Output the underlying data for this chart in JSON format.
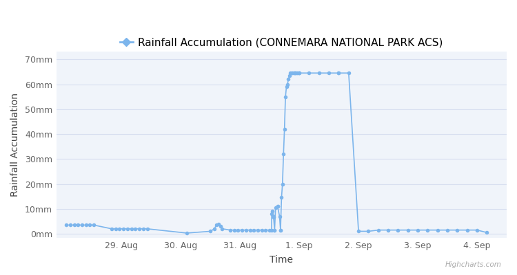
{
  "title": "Rainfall Accumulation (CONNEMARA NATIONAL PARK ACS)",
  "xlabel": "Time",
  "ylabel": "Rainfall Accumulation",
  "line_color": "#7cb5ec",
  "marker_color": "#7cb5ec",
  "background_color": "#ffffff",
  "plot_bg_color": "#f0f4fa",
  "grid_color": "#d8dff0",
  "watermark": "Highcharts.com",
  "yticks": [
    0,
    10,
    20,
    30,
    40,
    50,
    60,
    70
  ],
  "ytick_labels": [
    "0mm",
    "10mm",
    "20mm",
    "30mm",
    "40mm",
    "50mm",
    "60mm",
    "70mm"
  ],
  "xtick_labels": [
    "29. Aug",
    "30. Aug",
    "31. Aug",
    "1. Sep",
    "2. Sep",
    "3. Sep",
    "4. Sep"
  ],
  "time_points": [
    0.2,
    0.4,
    0.6,
    0.8,
    1.0,
    1.2,
    1.4,
    1.6,
    2.5,
    2.7,
    2.9,
    3.1,
    3.3,
    3.5,
    3.7,
    3.9,
    4.1,
    4.3,
    6.3,
    7.5,
    7.7,
    7.8,
    7.9,
    8.0,
    8.1,
    8.5,
    8.7,
    8.9,
    9.1,
    9.3,
    9.5,
    9.7,
    9.9,
    10.1,
    10.3,
    10.5,
    10.6,
    10.6,
    10.65,
    10.7,
    10.7,
    10.75,
    10.75,
    10.8,
    10.9,
    10.9,
    11.0,
    11.05,
    11.05,
    11.1,
    11.15,
    11.2,
    11.25,
    11.3,
    11.35,
    11.4,
    11.45,
    11.5,
    11.55,
    11.6,
    11.65,
    11.7,
    11.75,
    11.8,
    11.8,
    11.85,
    11.9,
    11.95,
    12.0,
    12.0,
    12.5,
    13.0,
    13.5,
    14.0,
    14.0,
    14.5,
    15.0,
    15.5,
    16.0,
    16.5,
    17.0,
    17.5,
    18.0,
    18.5,
    19.0,
    19.5,
    20.0,
    20.5,
    21.0,
    21.5
  ],
  "values": [
    3.5,
    3.5,
    3.5,
    3.5,
    3.5,
    3.5,
    3.5,
    3.5,
    2.0,
    2.0,
    2.0,
    2.0,
    2.0,
    2.0,
    2.0,
    2.0,
    2.0,
    2.0,
    0.3,
    1.0,
    2.0,
    3.5,
    4.0,
    3.0,
    2.0,
    1.5,
    1.5,
    1.5,
    1.5,
    1.5,
    1.5,
    1.5,
    1.5,
    1.5,
    1.5,
    1.5,
    1.5,
    8.0,
    9.0,
    7.0,
    6.5,
    1.5,
    1.5,
    10.5,
    11.0,
    11.0,
    7.0,
    1.5,
    1.5,
    14.5,
    20.0,
    32.0,
    42.0,
    55.0,
    59.0,
    60.0,
    62.0,
    63.5,
    64.5,
    64.5,
    64.5,
    64.5,
    64.5,
    64.5,
    64.5,
    64.5,
    64.5,
    64.5,
    64.5,
    64.5,
    64.5,
    64.5,
    64.5,
    64.5,
    64.5,
    64.5,
    1.0,
    1.0,
    1.5,
    1.5,
    1.5,
    1.5,
    1.5,
    1.5,
    1.5,
    1.5,
    1.5,
    1.5,
    1.5,
    0.5
  ],
  "ylim": [
    -1.5,
    73
  ],
  "xlim": [
    -0.3,
    22.5
  ],
  "figsize": [
    7.5,
    4.0
  ],
  "dpi": 100,
  "marker_size": 4,
  "linewidth": 1.2,
  "title_fontsize": 11,
  "axis_label_fontsize": 10,
  "tick_fontsize": 9
}
